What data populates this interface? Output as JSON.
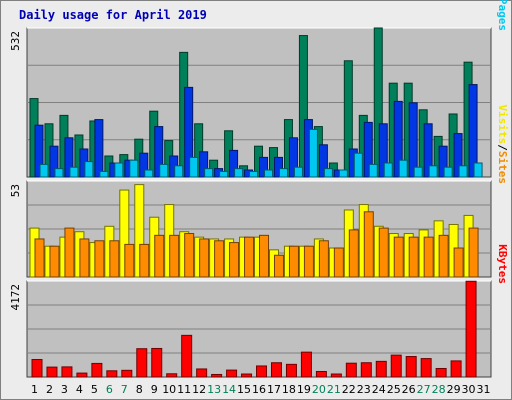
{
  "chart_data": {
    "type": "bar",
    "title": "Daily usage for April 2019",
    "days": [
      "1",
      "2",
      "3",
      "4",
      "5",
      "6",
      "7",
      "8",
      "9",
      "10",
      "11",
      "12",
      "13",
      "14",
      "15",
      "16",
      "17",
      "18",
      "19",
      "20",
      "21",
      "22",
      "23",
      "24",
      "25",
      "26",
      "27",
      "28",
      "29",
      "30",
      "31"
    ],
    "weekend_days": [
      "6",
      "7",
      "13",
      "14",
      "20",
      "21",
      "27",
      "28"
    ],
    "weekend_color": "#00805a",
    "panels": [
      {
        "id": "hits-files-pages",
        "max_label": "532",
        "ymax": 532,
        "side_labels": [
          {
            "text": "Hits",
            "color": "#00805a"
          },
          {
            "text": "/",
            "color": "#000000"
          },
          {
            "text": "Files",
            "color": "#0036e4"
          },
          {
            "text": "/",
            "color": "#000000"
          },
          {
            "text": "Pages",
            "color": "#00c8f0"
          }
        ],
        "series": [
          {
            "name": "Hits",
            "color": "#00805a",
            "values": [
              280,
              190,
              220,
              150,
              200,
              75,
              80,
              135,
              235,
              130,
              445,
              190,
              60,
              165,
              40,
              110,
              105,
              205,
              505,
              180,
              50,
              415,
              220,
              535,
              335,
              335,
              240,
              145,
              225,
              410,
              0
            ]
          },
          {
            "name": "Files",
            "color": "#0036e4",
            "values": [
              185,
              110,
              140,
              100,
              205,
              50,
              60,
              85,
              180,
              75,
              320,
              90,
              30,
              95,
              25,
              70,
              70,
              140,
              205,
              115,
              25,
              100,
              195,
              190,
              270,
              265,
              190,
              110,
              155,
              330,
              0
            ]
          },
          {
            "name": "Pages",
            "color": "#00c8f0",
            "values": [
              45,
              30,
              35,
              55,
              20,
              50,
              60,
              25,
              45,
              40,
              70,
              30,
              20,
              30,
              20,
              25,
              30,
              35,
              170,
              30,
              25,
              85,
              45,
              50,
              60,
              35,
              40,
              35,
              40,
              50,
              0
            ]
          }
        ]
      },
      {
        "id": "visits-sites",
        "max_label": "53",
        "ymax": 53,
        "side_labels": [
          {
            "text": "Visits",
            "color": "#f0e600"
          },
          {
            "text": "/",
            "color": "#000000"
          },
          {
            "text": "Sites",
            "color": "#f08c00"
          }
        ],
        "series": [
          {
            "name": "Visits",
            "color": "#ffff00",
            "values": [
              27,
              17,
              22,
              25,
              19,
              28,
              48,
              51,
              33,
              40,
              25,
              22,
              21,
              21,
              22,
              22,
              15,
              17,
              17,
              21,
              16,
              37,
              40,
              28,
              24,
              24,
              26,
              31,
              29,
              34,
              0
            ]
          },
          {
            "name": "Sites",
            "color": "#ff8c00",
            "values": [
              21,
              17,
              27,
              21,
              20,
              20,
              18,
              18,
              23,
              23,
              24,
              21,
              20,
              19,
              22,
              23,
              12,
              17,
              17,
              20,
              16,
              26,
              36,
              27,
              22,
              22,
              22,
              23,
              16,
              27,
              0
            ]
          }
        ]
      },
      {
        "id": "kbytes",
        "max_label": "4172",
        "ymax": 4172,
        "side_labels": [
          {
            "text": "KBytes",
            "color": "#ff0000"
          }
        ],
        "series": [
          {
            "name": "KBytes",
            "color": "#ff0000",
            "values": [
              760,
              430,
              440,
              170,
              590,
              270,
              290,
              1230,
              1240,
              140,
              1810,
              350,
              110,
              300,
              130,
              480,
              620,
              550,
              1080,
              240,
              130,
              600,
              620,
              680,
              950,
              890,
              800,
              370,
              700,
              4160,
              0
            ]
          }
        ]
      }
    ]
  }
}
